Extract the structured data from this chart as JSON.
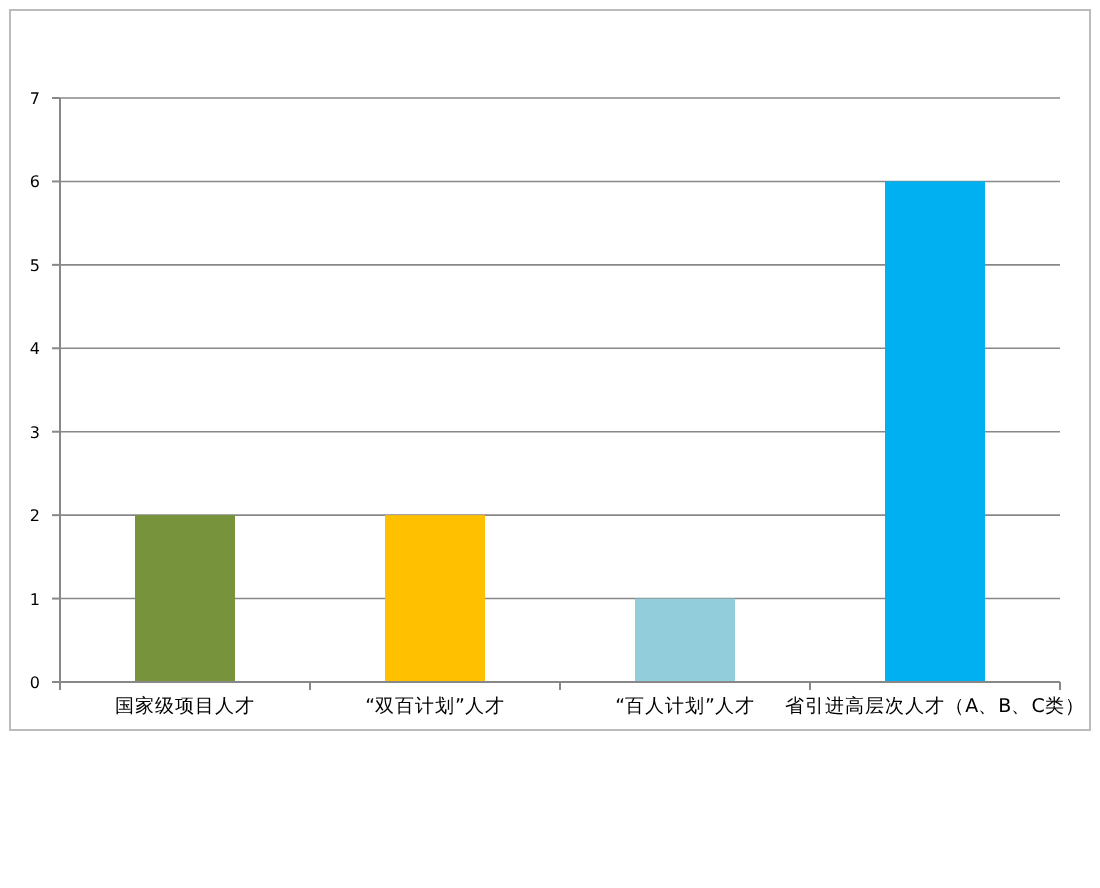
{
  "chart_data": {
    "type": "bar",
    "categories": [
      "国家级项目人才",
      "“双百计划”人才",
      "“百人计划”人才",
      "省引进高层次人才（A、B、C类）"
    ],
    "values": [
      2,
      2,
      1,
      6
    ],
    "colors": [
      "#77933c",
      "#ffc000",
      "#92cddc",
      "#00b0f0"
    ],
    "ylim": [
      0,
      7
    ],
    "yticks": [
      0,
      1,
      2,
      3,
      4,
      5,
      6,
      7
    ],
    "grid": "y"
  }
}
